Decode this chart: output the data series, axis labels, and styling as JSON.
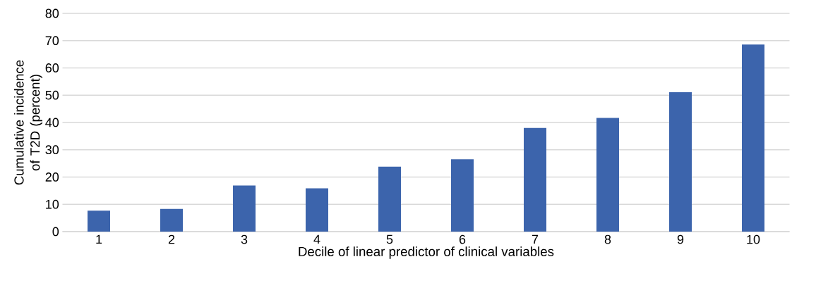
{
  "chart_data": {
    "type": "bar",
    "xlabel": "Decile of linear predictor of clinical variables",
    "ylabel": "Cumulative incidence of T2D (percent)",
    "categories": [
      "1",
      "2",
      "3",
      "4",
      "5",
      "6",
      "7",
      "8",
      "9",
      "10"
    ],
    "values": [
      7.7,
      8.3,
      16.9,
      15.9,
      23.8,
      26.5,
      38.0,
      41.7,
      51.1,
      68.6
    ],
    "color": "#3c64ac",
    "ylim": [
      0,
      80
    ],
    "yticks": [
      0,
      10,
      20,
      30,
      40,
      50,
      60,
      70,
      80
    ],
    "grid": "y"
  }
}
